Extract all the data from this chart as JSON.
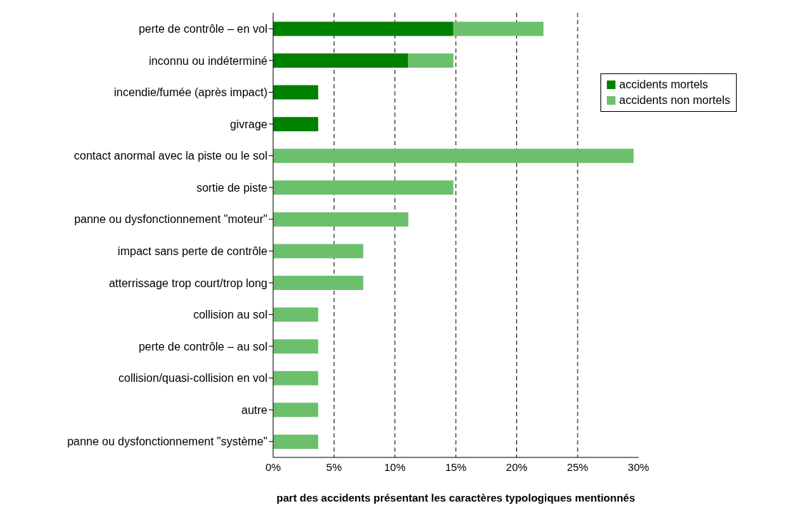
{
  "chart_data": {
    "type": "bar",
    "orientation": "horizontal",
    "stacked": true,
    "categories": [
      "perte de contrôle – en vol",
      "inconnu ou indéterminé",
      "incendie/fumée (après impact)",
      "givrage",
      "contact anormal avec la piste ou le sol",
      "sortie de piste",
      "panne ou dysfonctionnement \"moteur\"",
      "impact sans perte de contrôle",
      "atterrissage trop court/trop long",
      "collision au sol",
      "perte de contrôle – au sol",
      "collision/quasi-collision en vol",
      "autre",
      "panne ou dysfonctionnement \"système\""
    ],
    "series": [
      {
        "name": "accidents mortels",
        "color": "#008000",
        "values": [
          14.8,
          11.1,
          3.7,
          3.7,
          0,
          0,
          0,
          0,
          0,
          0,
          0,
          0,
          0,
          0
        ]
      },
      {
        "name": "accidents non mortels",
        "color": "#6cc06c",
        "values": [
          7.4,
          3.7,
          0,
          0,
          29.6,
          14.8,
          11.1,
          7.4,
          7.4,
          3.7,
          3.7,
          3.7,
          3.7,
          3.7
        ]
      }
    ],
    "xlim": [
      0,
      30
    ],
    "xticks": [
      {
        "value": 0,
        "label": "0%"
      },
      {
        "value": 5,
        "label": "5%"
      },
      {
        "value": 10,
        "label": "10%"
      },
      {
        "value": 15,
        "label": "15%"
      },
      {
        "value": 20,
        "label": "20%"
      },
      {
        "value": 25,
        "label": "25%"
      },
      {
        "value": 30,
        "label": "30%"
      }
    ],
    "xlabel": "part des accidents présentant les caractères typologiques mentionnés",
    "grid": "x",
    "legend": "top right"
  }
}
